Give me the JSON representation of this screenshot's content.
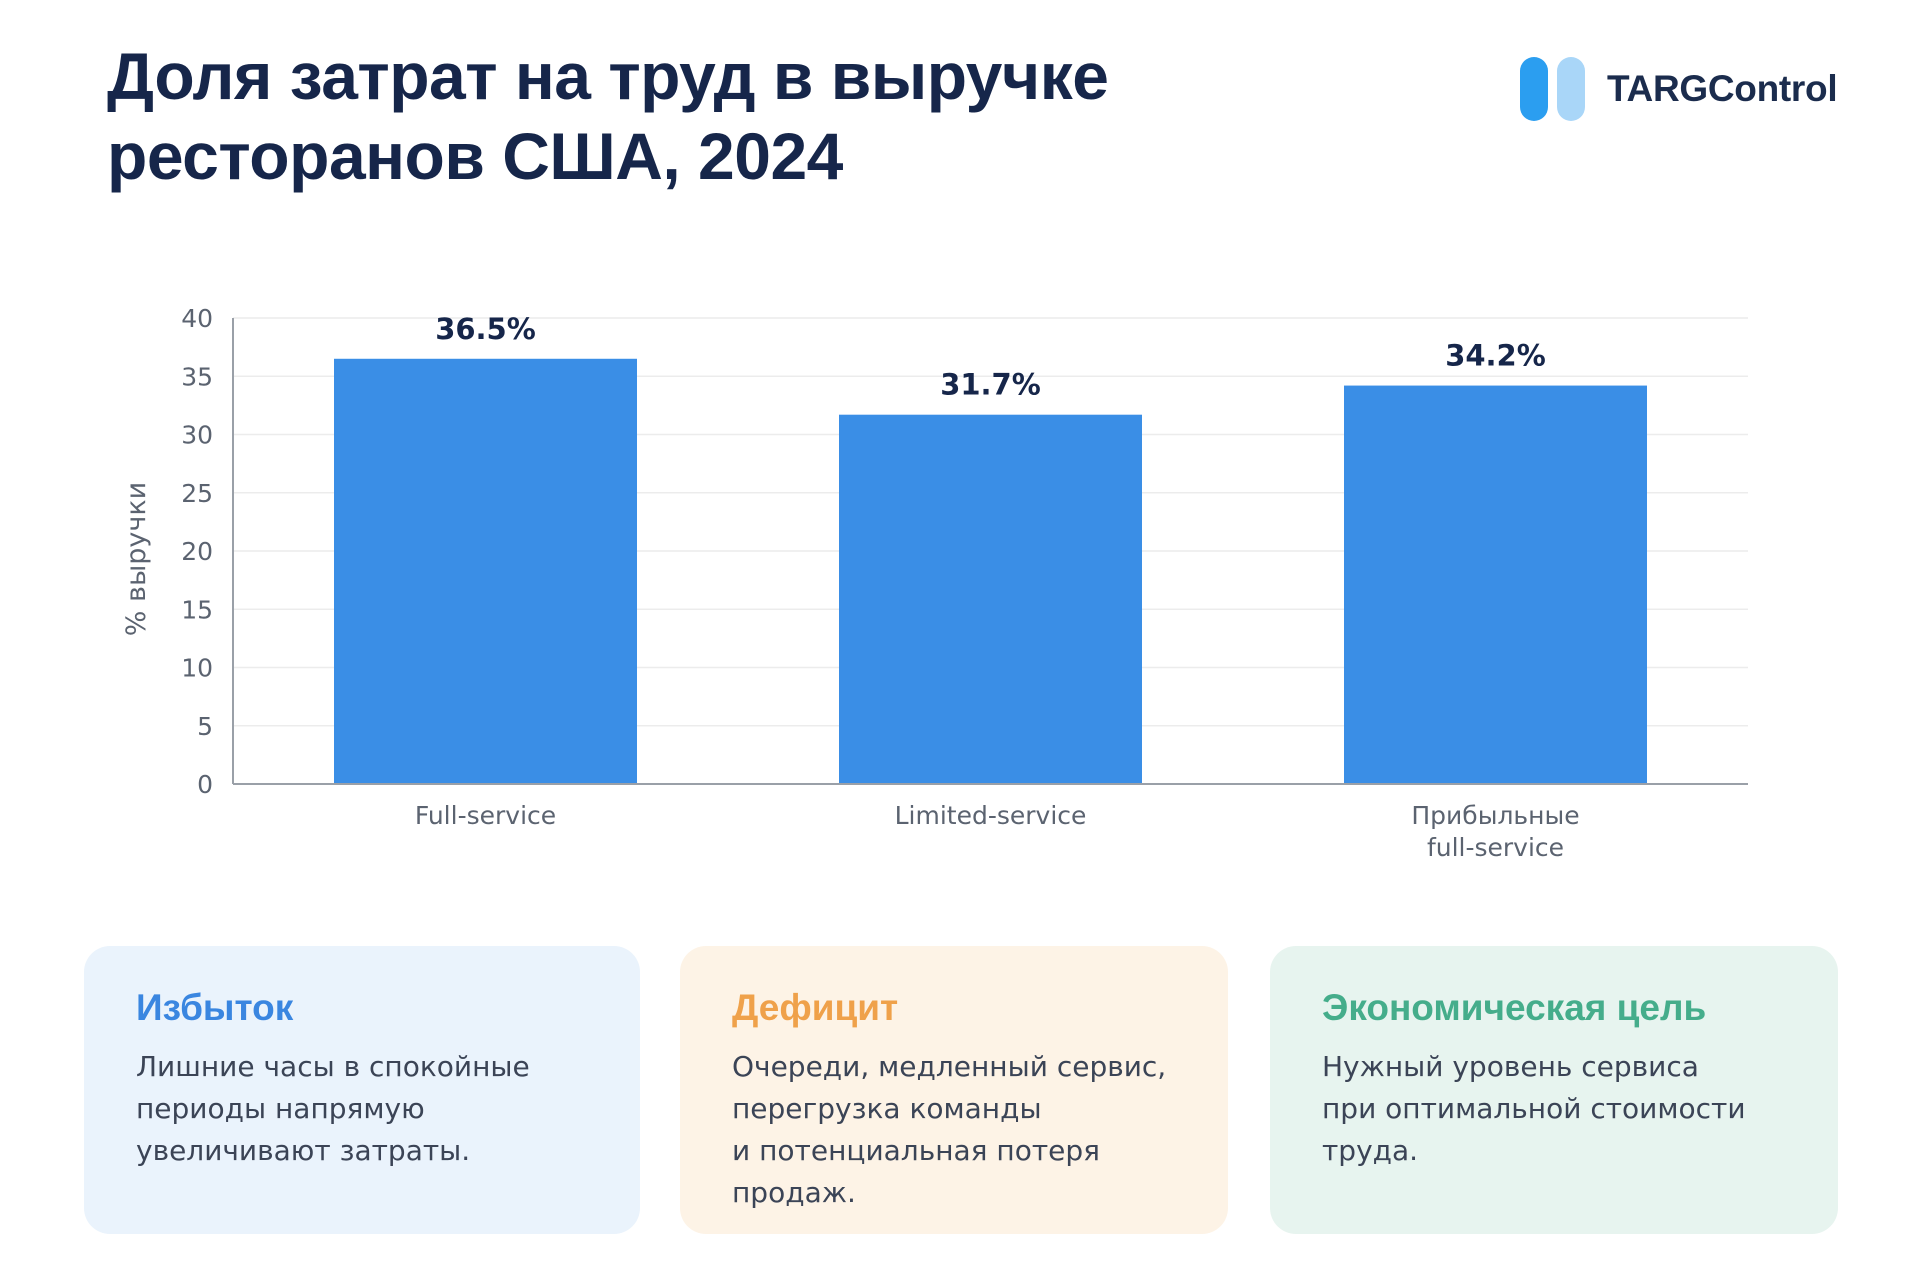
{
  "header": {
    "title_line1": "Доля затрат на труд в выручке",
    "title_line2": "ресторанов США, 2024"
  },
  "logo": {
    "text": "TARGControl",
    "mark_colors": [
      "#2b9ef0",
      "#a9d6f8"
    ]
  },
  "colors": {
    "bar": "#3a8ee6",
    "title": "#16264a",
    "value_label": "#16264a",
    "axis_text": "#5b6370",
    "grid": "#ececec"
  },
  "chart_data": {
    "type": "bar",
    "categories": [
      "Full-service",
      "Limited-service",
      "Прибыльные\nfull-service"
    ],
    "values": [
      36.5,
      31.7,
      34.2
    ],
    "value_labels": [
      "36.5%",
      "31.7%",
      "34.2%"
    ],
    "ylabel": "% выручки",
    "xlabel": "",
    "ylim": [
      0,
      40
    ],
    "yticks": [
      0,
      5,
      10,
      15,
      20,
      25,
      30,
      35,
      40
    ],
    "grid": true,
    "legend": "none"
  },
  "cards": [
    {
      "title": "Избыток",
      "title_color": "#3a86e0",
      "text": "Лишние часы в спокойные\nпериоды напрямую\nувеличивают затраты."
    },
    {
      "title": "Дефицит",
      "title_color": "#efa14a",
      "text": "Очереди, медленный сервис,\nперегрузка команды\nи потенциальная потеря\nпродаж."
    },
    {
      "title": "Экономическая цель",
      "title_color": "#45ad8b",
      "text": "Нужный уровень сервиса\nпри оптимальной стоимости\nтруда."
    }
  ]
}
